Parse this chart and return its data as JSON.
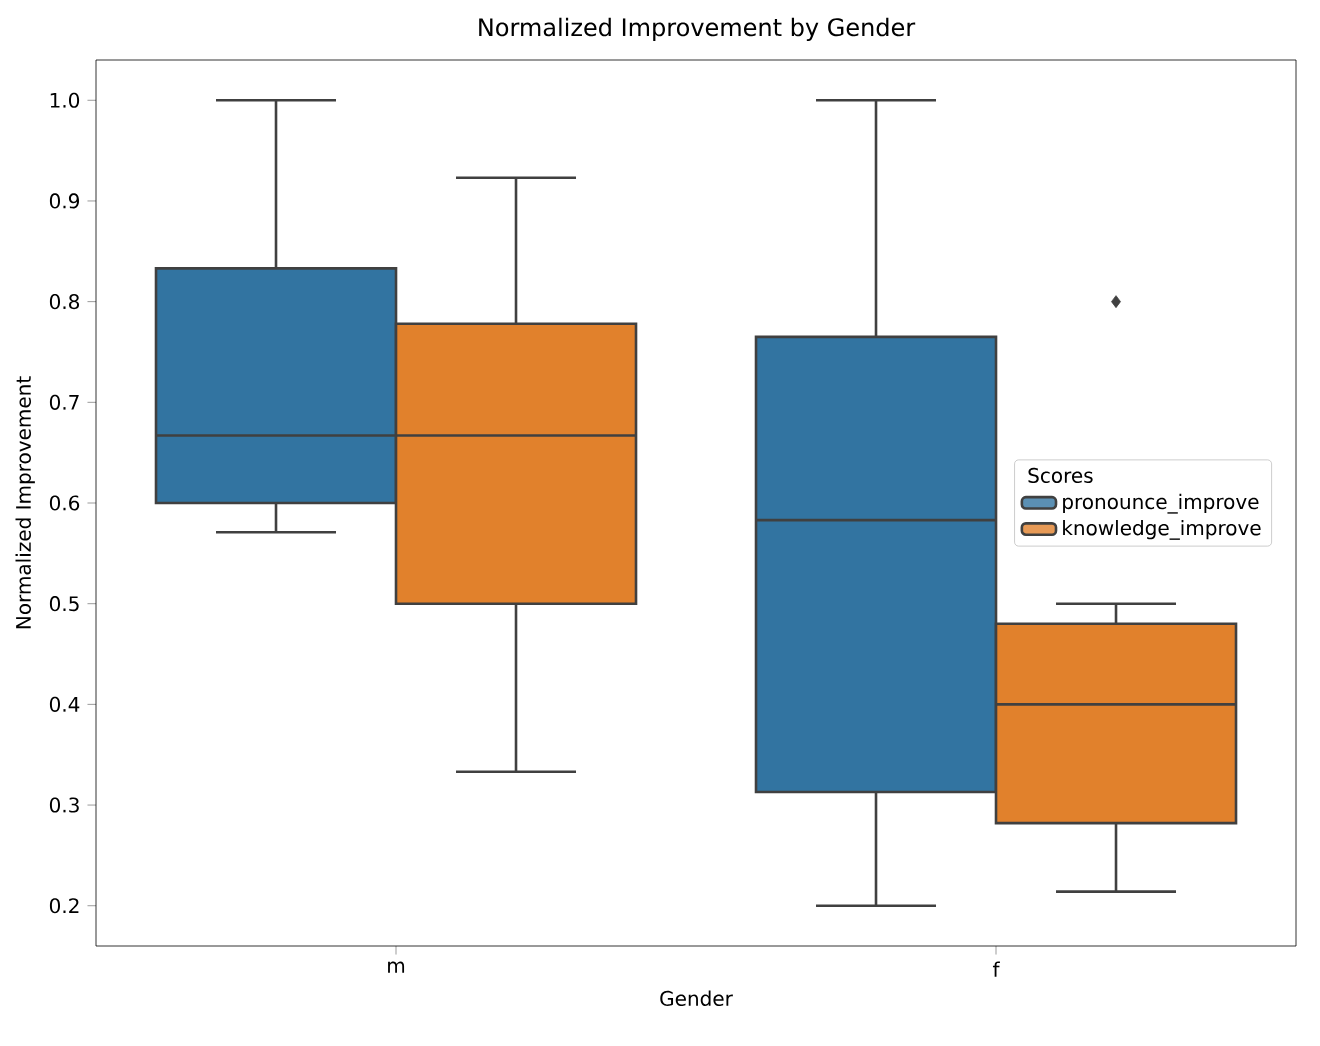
{
  "chart_data": {
    "type": "box",
    "title": "Normalized Improvement by Gender",
    "xlabel": "Gender",
    "ylabel": "Normalized Improvement",
    "legend_title": "Scores",
    "legend": "right",
    "categories": [
      "m",
      "f"
    ],
    "ylim": [
      0.16,
      1.04
    ],
    "yticks": [
      0.2,
      0.3,
      0.4,
      0.5,
      0.6,
      0.7,
      0.8,
      0.9,
      {
        "value": 1.0,
        "label": "1.0"
      }
    ],
    "series": [
      {
        "name": "pronounce_improve",
        "color": "#3274a1",
        "boxes": [
          {
            "low": 0.571,
            "q1": 0.6,
            "median": 0.667,
            "q3": 0.833,
            "high": 1.0
          },
          {
            "low": 0.2,
            "q1": 0.313,
            "median": 0.583,
            "q3": 0.765,
            "high": 1.0
          }
        ]
      },
      {
        "name": "knowledge_improve",
        "color": "#e1812c",
        "boxes": [
          {
            "low": 0.333,
            "q1": 0.5,
            "median": 0.667,
            "q3": 0.778,
            "high": 0.923
          },
          {
            "low": 0.214,
            "q1": 0.282,
            "median": 0.4,
            "q3": 0.48,
            "high": 0.5,
            "outliers": [
              0.8
            ]
          }
        ]
      }
    ]
  }
}
